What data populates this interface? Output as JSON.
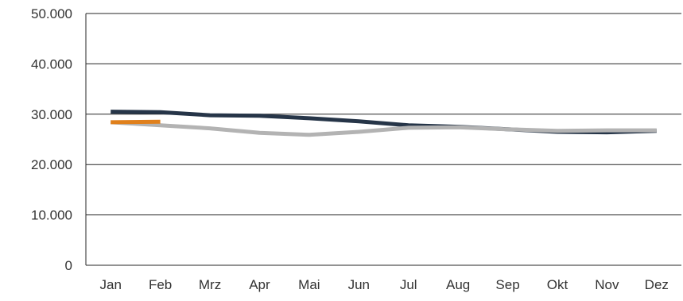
{
  "chart_data": {
    "type": "line",
    "title": "",
    "xlabel": "",
    "ylabel": "",
    "categories": [
      "Jan",
      "Feb",
      "Mrz",
      "Apr",
      "Mai",
      "Jun",
      "Jul",
      "Aug",
      "Sep",
      "Okt",
      "Nov",
      "Dez"
    ],
    "ylim": [
      0,
      50000
    ],
    "y_ticks": [
      0,
      10000,
      20000,
      30000,
      40000,
      50000
    ],
    "y_tick_labels": [
      "0",
      "10.000",
      "20.000",
      "30.000",
      "40.000",
      "50.000"
    ],
    "grid": "horizontal",
    "legend": "none",
    "series": [
      {
        "color": "#263548",
        "values": [
          30500,
          30400,
          29800,
          29700,
          29200,
          28600,
          27800,
          27500,
          27000,
          26500,
          26400,
          26700
        ]
      },
      {
        "color": "#b3b3b3",
        "values": [
          28400,
          27800,
          27200,
          26300,
          25900,
          26500,
          27300,
          27400,
          27000,
          26700,
          26800,
          26800
        ]
      },
      {
        "color": "#e0801c",
        "values": [
          28400,
          28500,
          null,
          null,
          null,
          null,
          null,
          null,
          null,
          null,
          null,
          null
        ]
      }
    ]
  }
}
